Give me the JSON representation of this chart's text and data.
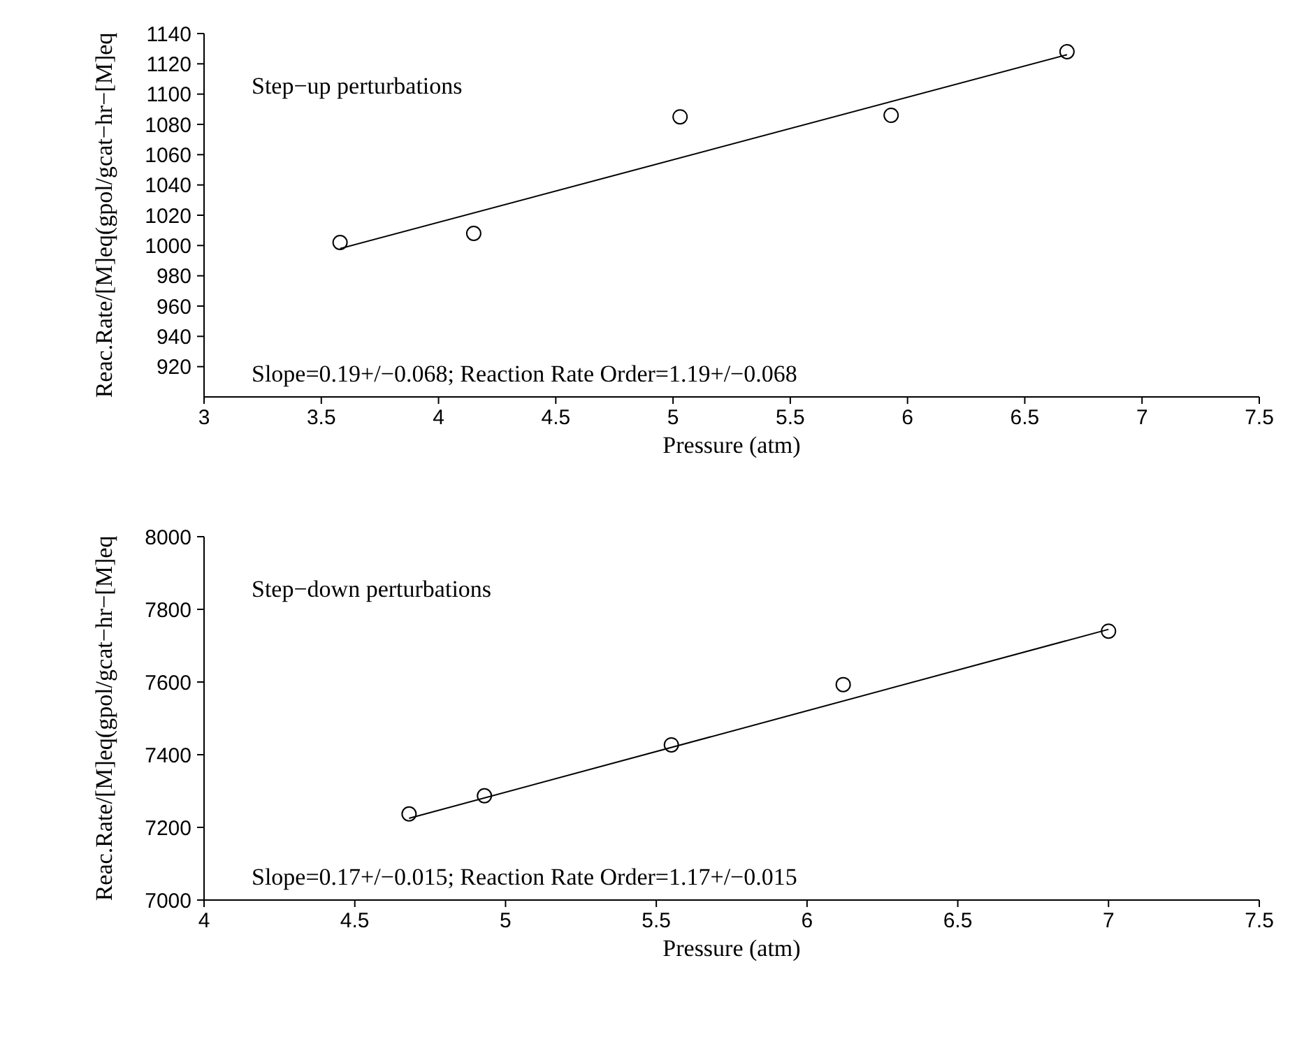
{
  "chart_data": [
    {
      "type": "scatter",
      "xlabel": "Pressure (atm)",
      "ylabel": "Reac.Rate/[M]eq(gpol/gcat−hr−[M]eq",
      "xlim": [
        3,
        7.5
      ],
      "xticks": [
        3,
        3.5,
        4,
        4.5,
        5,
        5.5,
        6,
        6.5,
        7,
        7.5
      ],
      "ylim": [
        900,
        1140
      ],
      "yticks": [
        920,
        940,
        960,
        980,
        1000,
        1020,
        1040,
        1060,
        1080,
        1100,
        1120,
        1140
      ],
      "grid": false,
      "legend": false,
      "annotations": [
        "Step−up perturbations",
        "Slope=0.19+/−0.068; Reaction Rate Order=1.19+/−0.068"
      ],
      "series": [
        {
          "type": "scatter",
          "marker": "circle",
          "color": "#000000",
          "x": [
            3.58,
            4.15,
            5.03,
            5.93,
            6.68
          ],
          "values": [
            1002,
            1008,
            1085,
            1086,
            1128
          ]
        },
        {
          "type": "line",
          "marker": "none",
          "color": "#000000",
          "x": [
            3.58,
            6.68
          ],
          "values": [
            998,
            1126
          ]
        }
      ]
    },
    {
      "type": "scatter",
      "xlabel": "Pressure (atm)",
      "ylabel": "Reac.Rate/[M]eq(gpol/gcat−hr−[M]eq",
      "xlim": [
        4,
        7.5
      ],
      "xticks": [
        4,
        4.5,
        5,
        5.5,
        6,
        6.5,
        7,
        7.5
      ],
      "ylim": [
        7000,
        8000
      ],
      "yticks": [
        7000,
        7200,
        7400,
        7600,
        7800,
        8000
      ],
      "grid": false,
      "legend": false,
      "annotations": [
        "Step−down perturbations",
        "Slope=0.17+/−0.015; Reaction Rate Order=1.17+/−0.015"
      ],
      "series": [
        {
          "type": "scatter",
          "marker": "circle",
          "color": "#000000",
          "x": [
            4.68,
            4.93,
            5.55,
            6.12,
            7.0
          ],
          "values": [
            7237,
            7287,
            7427,
            7593,
            7740
          ]
        },
        {
          "type": "line",
          "marker": "none",
          "color": "#000000",
          "x": [
            4.68,
            7.0
          ],
          "values": [
            7225,
            7745
          ]
        }
      ]
    }
  ]
}
